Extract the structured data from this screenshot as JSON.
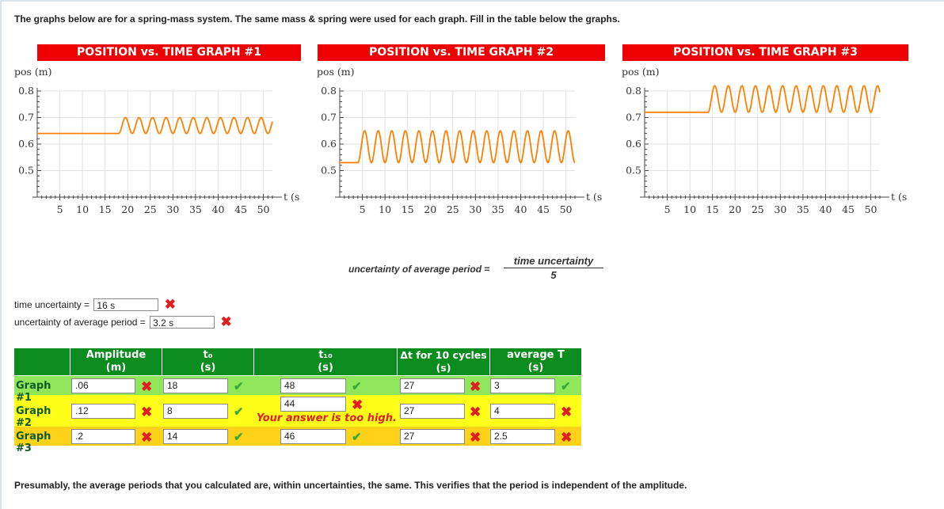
{
  "intro": "The graphs below are for a spring-mass system. The same mass & spring were used for each graph. Fill in the table below the graphs.",
  "conclusion": "Presumably, the average periods that you calculated are, within uncertainties, the same. This verifies that the period is independent of the amplitude.",
  "colors": {
    "title_bg": "#ee0000",
    "curve": "#ff8000",
    "table_header": "#0b8c1e",
    "row_green": "#8fe65a",
    "row_yellow": "#ffff1a",
    "row_gold": "#ffd21a",
    "wrong": "#e02020",
    "correct": "#3aa83a"
  },
  "graphs": [
    {
      "title": "POSITION vs. TIME GRAPH #1",
      "ylabel": "pos (m)",
      "xlabel": "t (s)"
    },
    {
      "title": "POSITION vs. TIME GRAPH #2",
      "ylabel": "pos (m)",
      "xlabel": "t (s)"
    },
    {
      "title": "POSITION vs. TIME GRAPH #3",
      "ylabel": "pos (m)",
      "xlabel": "t (s)"
    }
  ],
  "chart_data": [
    {
      "type": "line",
      "title": "POSITION vs. TIME GRAPH #1",
      "xlabel": "t (s)",
      "ylabel": "pos (m)",
      "xlim": [
        0,
        52
      ],
      "ylim": [
        0.4,
        0.8
      ],
      "grid": true,
      "xticks": [
        "5",
        "10",
        "15",
        "20",
        "25",
        "30",
        "35",
        "40",
        "45",
        "50"
      ],
      "yticks": [
        "0.5",
        "0.6",
        "0.7",
        "0.8"
      ],
      "series": [
        {
          "rest_position": 0.64,
          "release_time": 18,
          "amplitude": 0.06,
          "period": 3,
          "end_time": 52
        }
      ]
    },
    {
      "type": "line",
      "title": "POSITION vs. TIME GRAPH #2",
      "xlabel": "t (s)",
      "ylabel": "pos (m)",
      "xlim": [
        0,
        52
      ],
      "ylim": [
        0.4,
        0.8
      ],
      "grid": true,
      "xticks": [
        "5",
        "10",
        "15",
        "20",
        "25",
        "30",
        "35",
        "40",
        "45",
        "50"
      ],
      "yticks": [
        "0.5",
        "0.6",
        "0.7",
        "0.8"
      ],
      "series": [
        {
          "rest_position": 0.53,
          "release_time": 4,
          "amplitude": 0.12,
          "period": 3,
          "end_time": 52
        }
      ]
    },
    {
      "type": "line",
      "title": "POSITION vs. TIME GRAPH #3",
      "xlabel": "t (s)",
      "ylabel": "pos (m)",
      "xlim": [
        0,
        52
      ],
      "ylim": [
        0.4,
        0.8
      ],
      "grid": true,
      "xticks": [
        "5",
        "10",
        "15",
        "20",
        "25",
        "30",
        "35",
        "40",
        "45",
        "50"
      ],
      "yticks": [
        "0.5",
        "0.6",
        "0.7",
        "0.8"
      ],
      "series": [
        {
          "rest_position": 0.72,
          "release_time": 14,
          "amplitude": 0.1,
          "period": 3,
          "end_time": 52
        }
      ]
    }
  ],
  "formula": {
    "lhs": "uncertainty of average period =",
    "numerator": "time uncertainty",
    "denominator": "5"
  },
  "time_uncertainty": {
    "label": "time uncertainty =",
    "value": "16 s",
    "status": "wrong"
  },
  "period_uncertainty": {
    "label": "uncertainty of average period =",
    "value": "3.2 s",
    "status": "wrong"
  },
  "table": {
    "headers": {
      "amplitude": [
        "Amplitude",
        "(m)"
      ],
      "t0": [
        "t₀",
        "(s)"
      ],
      "t10": [
        "t₁₀",
        "(s)"
      ],
      "dt": [
        "Δt for 10 cycles",
        "(s)"
      ],
      "avg": [
        "average T",
        "(s)"
      ]
    },
    "rows": [
      {
        "label": "Graph #1",
        "amplitude": ".06",
        "t0": "18",
        "t10": "48",
        "dt": "27",
        "avg": "3",
        "status": {
          "amplitude": "wrong",
          "t0": "correct",
          "t10": "correct",
          "dt": "wrong",
          "avg": "correct"
        }
      },
      {
        "label": "Graph #2",
        "amplitude": ".12",
        "t0": "8",
        "t10": "44",
        "dt": "27",
        "avg": "4",
        "status": {
          "amplitude": "wrong",
          "t0": "correct",
          "t10": "wrong",
          "dt": "wrong",
          "avg": "wrong"
        },
        "feedback": "Your answer is too high."
      },
      {
        "label": "Graph #3",
        "amplitude": ".2",
        "t0": "14",
        "t10": "46",
        "dt": "27",
        "avg": "2.5",
        "status": {
          "amplitude": "wrong",
          "t0": "correct",
          "t10": "correct",
          "dt": "wrong",
          "avg": "wrong"
        }
      }
    ]
  }
}
